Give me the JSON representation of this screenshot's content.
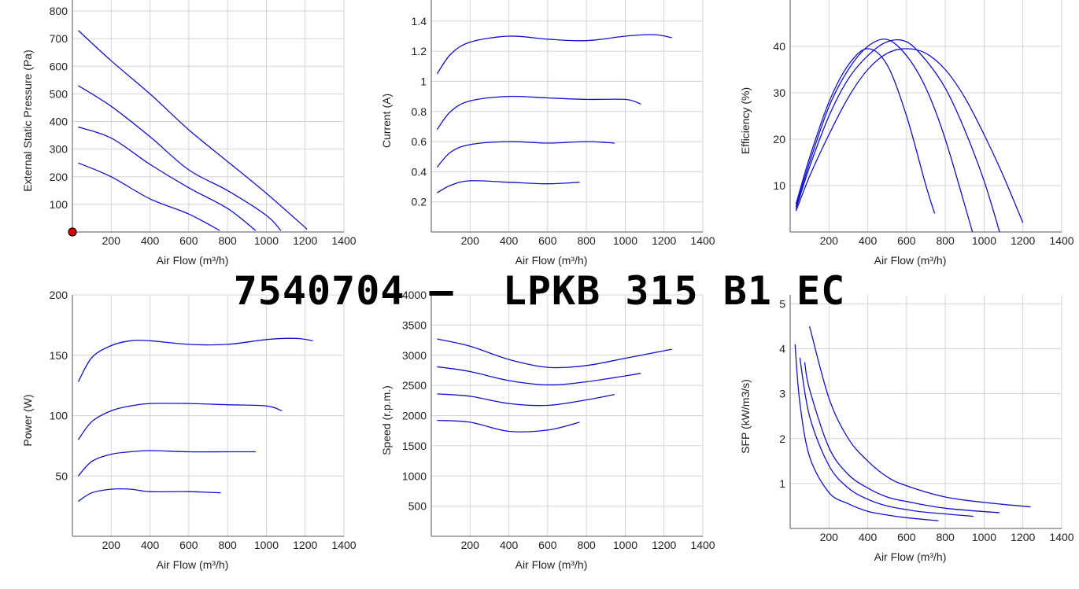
{
  "page_title": "7540704 –  LPKB 315 B1 EC",
  "colors": {
    "curve": "#1010cc",
    "grid": "#d4d4d4",
    "axis": "#555555",
    "marker": "#e00000"
  },
  "chart_data": [
    {
      "id": "pressure",
      "type": "line",
      "xlabel": "Air Flow (m³/h)",
      "ylabel": "External Static Pressure (Pa)",
      "xlim": [
        0,
        1400
      ],
      "ylim": [
        0,
        840
      ],
      "xticks": [
        200,
        400,
        600,
        800,
        1000,
        1200,
        1400
      ],
      "yticks": [
        100,
        200,
        300,
        400,
        500,
        600,
        700,
        800
      ],
      "marker": {
        "x": 0,
        "y": 0
      },
      "series": [
        {
          "x": [
            30,
            200,
            400,
            600,
            800,
            1000,
            1210
          ],
          "y": [
            730,
            620,
            500,
            370,
            255,
            140,
            10
          ]
        },
        {
          "x": [
            30,
            200,
            400,
            600,
            800,
            1000,
            1075
          ],
          "y": [
            530,
            455,
            345,
            225,
            150,
            60,
            5
          ]
        },
        {
          "x": [
            30,
            200,
            400,
            600,
            800,
            945
          ],
          "y": [
            380,
            340,
            245,
            160,
            85,
            5
          ]
        },
        {
          "x": [
            30,
            200,
            400,
            600,
            760
          ],
          "y": [
            250,
            200,
            120,
            65,
            5
          ]
        }
      ]
    },
    {
      "id": "current",
      "type": "line",
      "xlabel": "Air Flow (m³/h)",
      "ylabel": "Current (A)",
      "xlim": [
        0,
        1400
      ],
      "ylim": [
        0,
        1.54
      ],
      "xticks": [
        200,
        400,
        600,
        800,
        1000,
        1200,
        1400
      ],
      "yticks": [
        0.2,
        0.4,
        0.6,
        0.8,
        1,
        1.2,
        1.4
      ],
      "series": [
        {
          "x": [
            30,
            100,
            200,
            400,
            600,
            800,
            1000,
            1150,
            1240
          ],
          "y": [
            1.05,
            1.18,
            1.26,
            1.3,
            1.28,
            1.27,
            1.3,
            1.31,
            1.29
          ]
        },
        {
          "x": [
            30,
            100,
            200,
            400,
            600,
            800,
            1000,
            1080
          ],
          "y": [
            0.68,
            0.8,
            0.87,
            0.9,
            0.89,
            0.88,
            0.88,
            0.85
          ]
        },
        {
          "x": [
            30,
            100,
            200,
            400,
            600,
            800,
            945
          ],
          "y": [
            0.43,
            0.53,
            0.58,
            0.6,
            0.59,
            0.6,
            0.59
          ]
        },
        {
          "x": [
            30,
            100,
            200,
            400,
            600,
            765
          ],
          "y": [
            0.26,
            0.31,
            0.34,
            0.33,
            0.32,
            0.33
          ]
        }
      ]
    },
    {
      "id": "efficiency",
      "type": "line",
      "xlabel": "Air Flow (m³/h)",
      "ylabel": "Efficiency (%)",
      "xlim": [
        0,
        1400
      ],
      "ylim": [
        0,
        50
      ],
      "xticks": [
        200,
        400,
        600,
        800,
        1000,
        1200,
        1400
      ],
      "yticks": [
        10,
        20,
        30,
        40
      ],
      "series": [
        {
          "x": [
            30,
            100,
            200,
            300,
            400,
            500,
            600,
            700,
            745
          ],
          "y": [
            6,
            16,
            28,
            36,
            39.5,
            36,
            25,
            10,
            4
          ]
        },
        {
          "x": [
            30,
            100,
            200,
            300,
            400,
            500,
            600,
            700,
            800,
            940
          ],
          "y": [
            5.5,
            15,
            27,
            35,
            40,
            41.5,
            38,
            31,
            20,
            0
          ]
        },
        {
          "x": [
            30,
            100,
            200,
            300,
            400,
            500,
            600,
            700,
            800,
            900,
            1000,
            1080
          ],
          "y": [
            5,
            14,
            25,
            33,
            38,
            41,
            41,
            37,
            31,
            22,
            11,
            0
          ]
        },
        {
          "x": [
            30,
            100,
            200,
            300,
            400,
            500,
            600,
            700,
            800,
            900,
            1000,
            1100,
            1200
          ],
          "y": [
            4.5,
            12,
            21,
            29,
            35,
            38.5,
            39.5,
            38.5,
            35,
            29,
            21,
            12,
            2
          ]
        }
      ]
    },
    {
      "id": "power",
      "type": "line",
      "xlabel": "Air Flow (m³/h)",
      "ylabel": "Power (W)",
      "xlim": [
        0,
        1400
      ],
      "ylim": [
        0,
        200
      ],
      "xticks": [
        200,
        400,
        600,
        800,
        1000,
        1200,
        1400
      ],
      "yticks": [
        50,
        100,
        150,
        200
      ],
      "series": [
        {
          "x": [
            30,
            100,
            200,
            300,
            400,
            600,
            800,
            1000,
            1150,
            1240
          ],
          "y": [
            128,
            148,
            158,
            162,
            162,
            159,
            159,
            163,
            164,
            162
          ]
        },
        {
          "x": [
            30,
            100,
            200,
            300,
            400,
            600,
            800,
            1000,
            1080
          ],
          "y": [
            80,
            95,
            104,
            108,
            110,
            110,
            109,
            108,
            104
          ]
        },
        {
          "x": [
            30,
            100,
            200,
            300,
            400,
            600,
            800,
            945
          ],
          "y": [
            50,
            62,
            68,
            70,
            71,
            70,
            70,
            70
          ]
        },
        {
          "x": [
            30,
            100,
            200,
            300,
            400,
            600,
            765
          ],
          "y": [
            29,
            36,
            39,
            39,
            37,
            37,
            36
          ]
        }
      ]
    },
    {
      "id": "speed",
      "type": "line",
      "xlabel": "Air Flow (m³/h)",
      "ylabel": "Speed (r.p.m.)",
      "xlim": [
        0,
        1400
      ],
      "ylim": [
        0,
        4000
      ],
      "xticks": [
        200,
        400,
        600,
        800,
        1000,
        1200,
        1400
      ],
      "yticks": [
        500,
        1000,
        1500,
        2000,
        2500,
        3000,
        3500,
        4000
      ],
      "series": [
        {
          "x": [
            30,
            200,
            400,
            600,
            800,
            1000,
            1240
          ],
          "y": [
            3270,
            3150,
            2930,
            2800,
            2830,
            2950,
            3100
          ]
        },
        {
          "x": [
            30,
            200,
            400,
            600,
            800,
            1080
          ],
          "y": [
            2810,
            2730,
            2580,
            2510,
            2560,
            2700
          ]
        },
        {
          "x": [
            30,
            200,
            400,
            600,
            800,
            945
          ],
          "y": [
            2360,
            2320,
            2200,
            2170,
            2260,
            2350
          ]
        },
        {
          "x": [
            30,
            200,
            400,
            600,
            765
          ],
          "y": [
            1920,
            1890,
            1740,
            1760,
            1890
          ]
        }
      ]
    },
    {
      "id": "sfp",
      "type": "line",
      "xlabel": "Air Flow (m³/h)",
      "ylabel": "SFP (kW/m3/s)",
      "xlim": [
        0,
        1400
      ],
      "ylim": [
        0,
        5.2
      ],
      "xticks": [
        200,
        400,
        600,
        800,
        1000,
        1200,
        1400
      ],
      "yticks": [
        1,
        2,
        3,
        4,
        5
      ],
      "series": [
        {
          "x": [
            25,
            50,
            100,
            200,
            300,
            400,
            500,
            600,
            765
          ],
          "y": [
            4.1,
            2.8,
            1.6,
            0.8,
            0.55,
            0.38,
            0.3,
            0.24,
            0.17
          ]
        },
        {
          "x": [
            50,
            100,
            200,
            300,
            400,
            500,
            600,
            700,
            945
          ],
          "y": [
            3.8,
            2.5,
            1.4,
            0.9,
            0.65,
            0.5,
            0.42,
            0.36,
            0.27
          ]
        },
        {
          "x": [
            75,
            100,
            200,
            300,
            400,
            500,
            600,
            800,
            1080
          ],
          "y": [
            3.7,
            3.1,
            1.8,
            1.2,
            0.9,
            0.7,
            0.6,
            0.45,
            0.35
          ]
        },
        {
          "x": [
            100,
            200,
            300,
            400,
            500,
            600,
            800,
            1000,
            1240
          ],
          "y": [
            4.5,
            2.9,
            2.0,
            1.5,
            1.15,
            0.95,
            0.7,
            0.58,
            0.48
          ]
        }
      ]
    }
  ]
}
